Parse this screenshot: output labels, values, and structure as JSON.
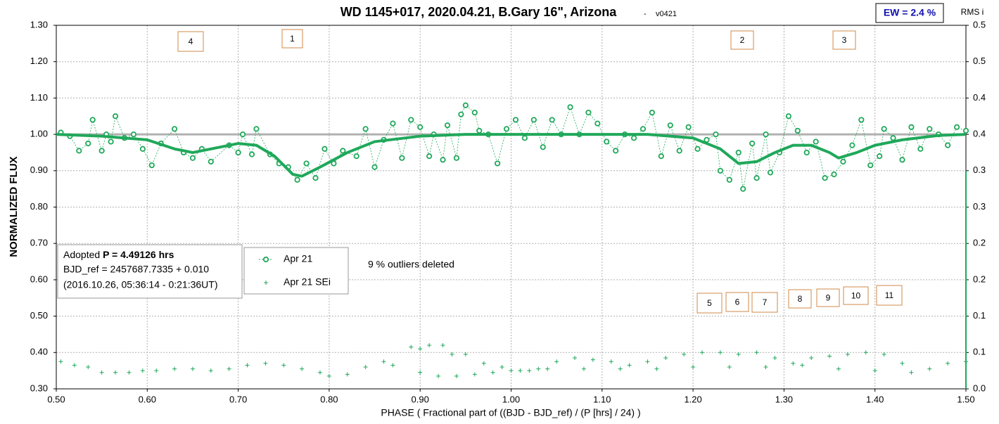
{
  "chart_data": {
    "type": "scatter",
    "title": "WD 1145+017, 2020.04.21, B.Gary 16\", Arizona",
    "subtitle": "v0421",
    "x_label": "PHASE ( Fractional part of ((BJD - BJD_ref) / (P [hrs] / 24) )",
    "y_label": "NORMALIZED FLUX",
    "y2_label": "RMS i",
    "xlim": [
      0.5,
      1.5
    ],
    "xticks": [
      {
        "value": 0.5,
        "label": "0.50"
      },
      {
        "value": 0.6,
        "label": "0.60"
      },
      {
        "value": 0.7,
        "label": "0.70"
      },
      {
        "value": 0.8,
        "label": "0.80"
      },
      {
        "value": 0.9,
        "label": "0.90"
      },
      {
        "value": 1.0,
        "label": "1.00"
      },
      {
        "value": 1.1,
        "label": "1.10"
      },
      {
        "value": 1.2,
        "label": "1.20"
      },
      {
        "value": 1.3,
        "label": "1.30"
      },
      {
        "value": 1.4,
        "label": "1.40"
      },
      {
        "value": 1.5,
        "label": "1.50"
      }
    ],
    "ylim": [
      0.3,
      1.3
    ],
    "yticks": [
      {
        "value": 0.3,
        "label": "0.30"
      },
      {
        "value": 0.4,
        "label": "0.40"
      },
      {
        "value": 0.5,
        "label": "0.50"
      },
      {
        "value": 0.6,
        "label": "0.60"
      },
      {
        "value": 0.7,
        "label": "0.70"
      },
      {
        "value": 0.8,
        "label": "0.80"
      },
      {
        "value": 0.9,
        "label": "0.90"
      },
      {
        "value": 1.0,
        "label": "1.00"
      },
      {
        "value": 1.1,
        "label": "1.10"
      },
      {
        "value": 1.2,
        "label": "1.20"
      },
      {
        "value": 1.3,
        "label": "1.30"
      }
    ],
    "y2lim": [
      0,
      0.5
    ],
    "y2ticks": [
      {
        "value": 0,
        "label": "0.0"
      },
      {
        "value": 0.05,
        "label": "0.1"
      },
      {
        "value": 0.1,
        "label": "0.1"
      },
      {
        "value": 0.15,
        "label": "0.2"
      },
      {
        "value": 0.2,
        "label": "0.2"
      },
      {
        "value": 0.25,
        "label": "0.3"
      },
      {
        "value": 0.3,
        "label": "0.3"
      },
      {
        "value": 0.35,
        "label": "0.4"
      },
      {
        "value": 0.4,
        "label": "0.4"
      },
      {
        "value": 0.45,
        "label": "0.5"
      },
      {
        "value": 0.5,
        "label": "0.5"
      }
    ],
    "grid": true,
    "series": [
      {
        "name": "Apr 21",
        "color": "#1fa85a",
        "marker": "circle",
        "x": [
          0.505,
          0.515,
          0.525,
          0.535,
          0.54,
          0.55,
          0.555,
          0.56,
          0.565,
          0.575,
          0.585,
          0.595,
          0.605,
          0.615,
          0.63,
          0.64,
          0.65,
          0.66,
          0.67,
          0.69,
          0.7,
          0.705,
          0.715,
          0.72,
          0.735,
          0.745,
          0.755,
          0.765,
          0.775,
          0.785,
          0.795,
          0.805,
          0.815,
          0.83,
          0.84,
          0.85,
          0.86,
          0.87,
          0.88,
          0.89,
          0.9,
          0.91,
          0.915,
          0.925,
          0.93,
          0.94,
          0.945,
          0.95,
          0.96,
          0.965,
          0.975,
          0.985,
          0.995,
          1.005,
          1.015,
          1.025,
          1.035,
          1.045,
          1.055,
          1.065,
          1.075,
          1.085,
          1.095,
          1.105,
          1.115,
          1.125,
          1.135,
          1.145,
          1.155,
          1.165,
          1.175,
          1.185,
          1.195,
          1.205,
          1.215,
          1.225,
          1.23,
          1.24,
          1.25,
          1.255,
          1.265,
          1.27,
          1.28,
          1.285,
          1.295,
          1.305,
          1.315,
          1.325,
          1.335,
          1.345,
          1.355,
          1.365,
          1.375,
          1.385,
          1.395,
          1.405,
          1.41,
          1.42,
          1.43,
          1.44,
          1.45,
          1.46,
          1.47,
          1.48,
          1.49,
          1.5
        ],
        "values": [
          1.005,
          0.995,
          0.955,
          0.975,
          1.04,
          0.955,
          1.0,
          0.98,
          1.05,
          0.99,
          1.0,
          0.96,
          0.915,
          0.975,
          1.015,
          0.95,
          0.935,
          0.96,
          0.925,
          0.97,
          0.95,
          1.0,
          0.945,
          1.015,
          0.945,
          0.92,
          0.91,
          0.875,
          0.92,
          0.88,
          0.96,
          0.92,
          0.955,
          0.94,
          1.015,
          0.91,
          0.985,
          1.03,
          0.935,
          1.04,
          1.02,
          0.94,
          1.0,
          0.93,
          1.025,
          0.935,
          1.055,
          1.08,
          1.06,
          1.01,
          1.0,
          0.92,
          1.015,
          1.04,
          0.99,
          1.04,
          0.965,
          1.04,
          1.0,
          1.075,
          1.0,
          1.06,
          1.03,
          0.98,
          0.955,
          1.0,
          0.99,
          1.015,
          1.06,
          0.94,
          1.025,
          0.955,
          1.02,
          0.96,
          0.985,
          1.0,
          0.9,
          0.875,
          0.95,
          0.85,
          0.975,
          0.88,
          1.0,
          0.895,
          0.95,
          1.05,
          1.01,
          0.95,
          0.98,
          0.88,
          0.89,
          0.925,
          0.97,
          1.04,
          0.915,
          0.94,
          1.015,
          0.99,
          0.93,
          1.02,
          0.96,
          1.015,
          1.0,
          0.97,
          1.02,
          1.01
        ]
      },
      {
        "color": "#1fa85a",
        "marker": "line",
        "x": [
          0.5,
          0.55,
          0.6,
          0.63,
          0.65,
          0.67,
          0.7,
          0.72,
          0.74,
          0.76,
          0.77,
          0.79,
          0.82,
          0.85,
          0.9,
          0.95,
          1.0,
          1.1,
          1.15,
          1.2,
          1.23,
          1.25,
          1.27,
          1.29,
          1.31,
          1.33,
          1.35,
          1.36,
          1.38,
          1.4,
          1.43,
          1.47,
          1.5
        ],
        "values": [
          1.0,
          0.995,
          0.985,
          0.96,
          0.95,
          0.96,
          0.975,
          0.97,
          0.94,
          0.89,
          0.885,
          0.91,
          0.95,
          0.98,
          0.995,
          1.0,
          1.0,
          1.0,
          1.0,
          0.99,
          0.96,
          0.92,
          0.925,
          0.95,
          0.97,
          0.97,
          0.95,
          0.935,
          0.95,
          0.97,
          0.985,
          0.997,
          1.0
        ]
      },
      {
        "color": "#b0b0b0",
        "marker": "line",
        "x": [
          0.5,
          1.5
        ],
        "values": [
          1.0,
          1.0
        ]
      },
      {
        "name": "Apr 21 SEi",
        "color": "#1fa85a",
        "marker": "cross",
        "x": [
          0.505,
          0.52,
          0.535,
          0.55,
          0.565,
          0.58,
          0.595,
          0.61,
          0.63,
          0.65,
          0.67,
          0.69,
          0.71,
          0.73,
          0.75,
          0.77,
          0.79,
          0.8,
          0.82,
          0.84,
          0.86,
          0.87,
          0.89,
          0.9,
          0.91,
          0.925,
          0.935,
          0.95,
          0.97,
          0.99,
          1.01,
          1.03,
          1.05,
          1.07,
          1.09,
          1.11,
          1.13,
          1.15,
          1.17,
          1.19,
          1.21,
          1.23,
          1.25,
          1.27,
          1.29,
          1.31,
          1.33,
          1.35,
          1.37,
          1.39,
          1.41,
          1.43,
          1.44,
          1.46,
          1.48,
          1.5,
          0.9,
          0.92,
          0.94,
          0.96,
          0.98,
          1.0,
          1.02,
          1.04,
          1.08,
          1.12,
          1.16,
          1.2,
          1.24,
          1.28,
          1.32,
          1.36,
          1.4
        ],
        "values": [
          0.375,
          0.365,
          0.36,
          0.345,
          0.345,
          0.345,
          0.35,
          0.35,
          0.355,
          0.355,
          0.35,
          0.355,
          0.365,
          0.37,
          0.365,
          0.355,
          0.345,
          0.335,
          0.34,
          0.36,
          0.375,
          0.365,
          0.415,
          0.41,
          0.42,
          0.42,
          0.395,
          0.395,
          0.37,
          0.36,
          0.35,
          0.355,
          0.375,
          0.385,
          0.38,
          0.375,
          0.365,
          0.375,
          0.385,
          0.395,
          0.4,
          0.4,
          0.395,
          0.4,
          0.385,
          0.37,
          0.385,
          0.39,
          0.395,
          0.4,
          0.395,
          0.37,
          0.345,
          0.355,
          0.37,
          0.375,
          0.345,
          0.335,
          0.335,
          0.34,
          0.345,
          0.35,
          0.35,
          0.355,
          0.355,
          0.355,
          0.355,
          0.36,
          0.36,
          0.36,
          0.365,
          0.355,
          0.35
        ]
      }
    ],
    "annotations": [
      "4",
      "1",
      "2",
      "3",
      "5",
      "6",
      "7",
      "8",
      "9",
      "10",
      "11"
    ],
    "note": "9 % outliers deleted",
    "ew_label": "EW = 2.4 %",
    "info_box": {
      "prefix": "Adopted ",
      "period": "P = 4.49126 hrs",
      "line2": "BJD_ref = 2457687.7335 + 0.010",
      "line3": "(2016.10.26, 05:36:14 - 0:21:36UT)"
    }
  }
}
